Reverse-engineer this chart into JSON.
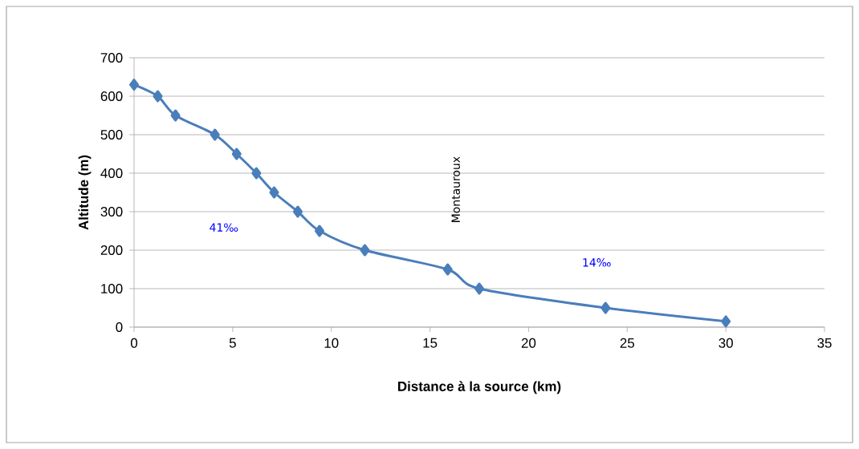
{
  "chart_data": {
    "type": "line",
    "xlabel": "Distance à la source (km)",
    "ylabel": "Altitude (m)",
    "x": [
      0,
      1.2,
      2.1,
      4.1,
      5.2,
      6.2,
      7.1,
      8.3,
      9.4,
      11.7,
      15.9,
      17.5,
      23.9,
      30
    ],
    "series": [
      {
        "color": "#4a7ebb",
        "values": [
          630,
          600,
          550,
          500,
          450,
          400,
          350,
          300,
          250,
          200,
          150,
          100,
          50,
          15
        ]
      }
    ],
    "xlim": [
      0,
      35
    ],
    "xticks": [
      0,
      5,
      10,
      15,
      20,
      25,
      30,
      35
    ],
    "ylim": [
      0,
      700
    ],
    "yticks": [
      0,
      100,
      200,
      300,
      400,
      500,
      600,
      700
    ],
    "grid": "y",
    "marker": "diamond",
    "line_style": "solid",
    "annotations": [
      "41‰",
      "14‰",
      "Montauroux"
    ]
  }
}
